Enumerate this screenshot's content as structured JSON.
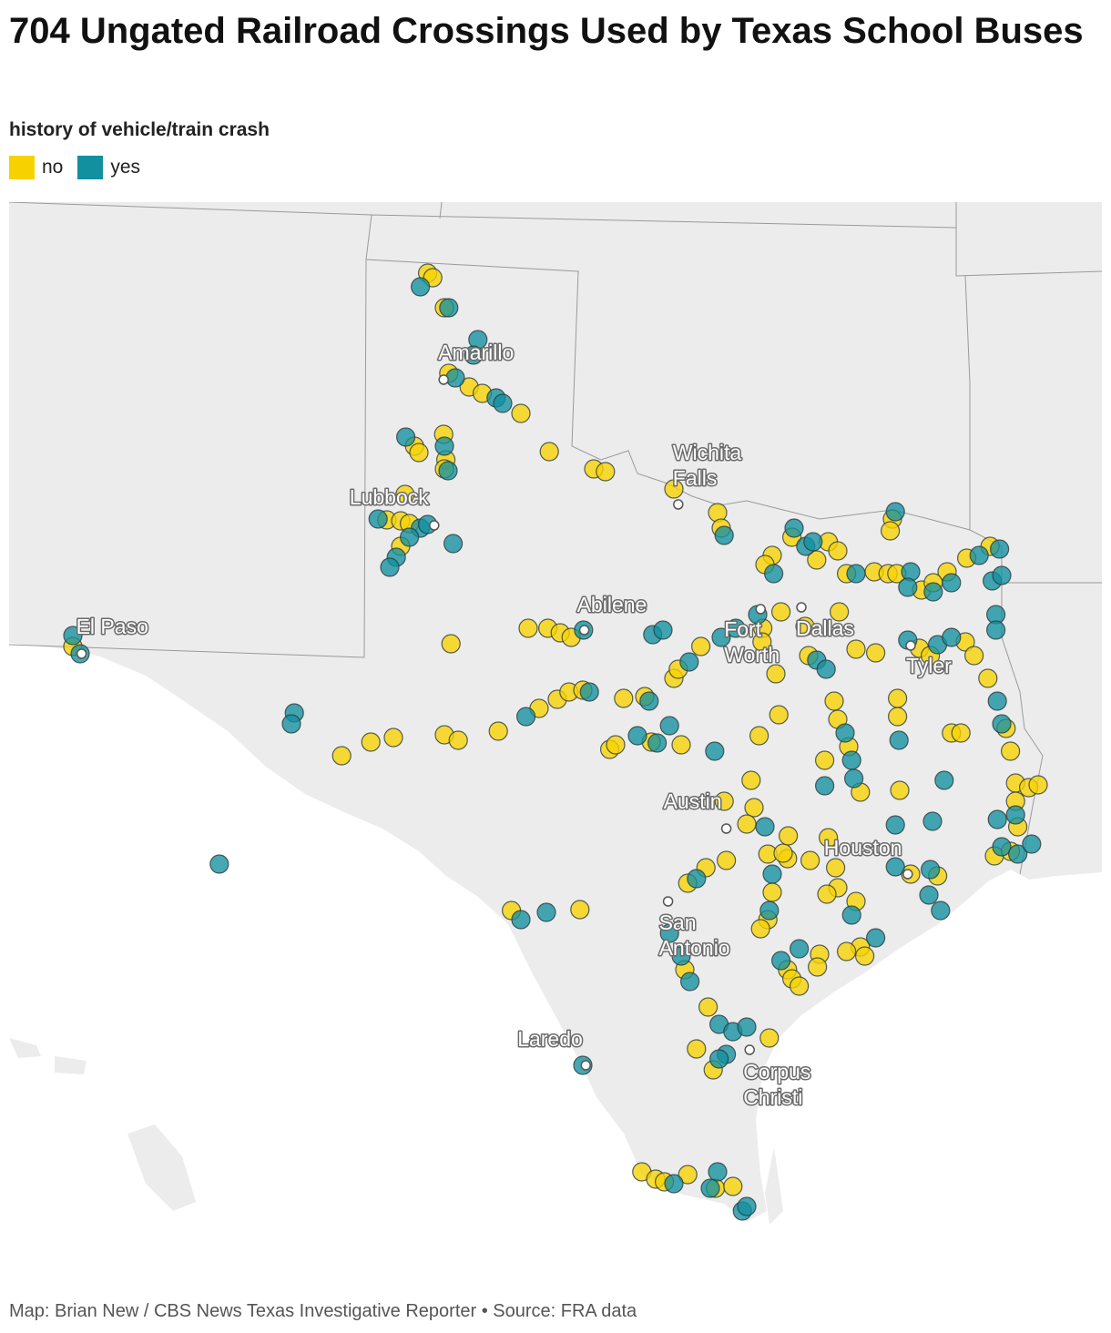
{
  "chart_data": {
    "type": "map",
    "title": "704 Ungated Railroad Crossings Used by Texas School Buses",
    "legend_title": "history of vehicle/train crash",
    "source": "Map: Brian New / CBS News Texas Investigative Reporter • Source: FRA data",
    "series": [
      {
        "name": "no",
        "color": "#f7d200",
        "x": [
          -101.73,
          -101.66,
          -101.5,
          -101.44,
          -101.16,
          -100.98,
          -100.45,
          -100.06,
          -99.45,
          -99.29,
          -101.91,
          -101.85,
          -101.51,
          -101.48,
          -101.5,
          -102.29,
          -102.1,
          -101.98,
          -102.04,
          -102.1,
          -106.6,
          -102.91,
          -102.51,
          -102.2,
          -101.5,
          -101.31,
          -100.76,
          -100.2,
          -99.95,
          -99.79,
          -99.6,
          -100.35,
          -100.08,
          -99.91,
          -99.76,
          -101.41,
          -99.04,
          -98.75,
          -99.23,
          -99.15,
          -98.66,
          -98.25,
          -98.35,
          -98.29,
          -97.98,
          -97.13,
          -97.14,
          -96.95,
          -96.91,
          -97.18,
          -97.29,
          -98.35,
          -97.75,
          -97.7,
          -97.0,
          -97.1,
          -96.88,
          -96.73,
          -96.39,
          -96.23,
          -96.1,
          -95.98,
          -95.6,
          -95.41,
          -95.29,
          -94.95,
          -94.6,
          -94.79,
          -95.35,
          -95.38,
          -94.33,
          -94.01,
          -96.08,
          -96.55,
          -95.85,
          -95.58,
          -96.5,
          -94.98,
          -94.83,
          -94.35,
          -94.23,
          -94.04,
          -93.79,
          -93.73,
          -95.28,
          -95.28,
          -94.54,
          -94.41,
          -96.15,
          -96.1,
          -95.95,
          -95.79,
          -96.28,
          -95.25,
          -93.66,
          -93.48,
          -93.35,
          -93.66,
          -93.63,
          -93.95,
          -93.73,
          -95.1,
          -94.73,
          -96.13,
          -96.1,
          -96.25,
          -95.85,
          -95.79,
          -95.98,
          -95.73,
          -96.35,
          -96.79,
          -96.73,
          -96.63,
          -96.38,
          -96.23,
          -96.48,
          -96.79,
          -97.06,
          -96.85,
          -97.0,
          -97.06,
          -97.16,
          -97.66,
          -97.25,
          -97.35,
          -96.78,
          -97.63,
          -97.91,
          -98.16,
          -98.2,
          -100.58,
          -99.64,
          -97.88,
          -97.04,
          -98.04,
          -97.81,
          -98.79,
          -98.6,
          -98.48,
          -98.16,
          -97.78,
          -97.54
        ],
        "y": [
          36.39,
          36.34,
          36.01,
          35.29,
          35.14,
          35.07,
          34.85,
          34.43,
          34.24,
          34.21,
          34.49,
          34.42,
          34.62,
          34.34,
          34.24,
          33.68,
          33.67,
          33.64,
          33.96,
          33.39,
          32.29,
          31.09,
          31.24,
          31.29,
          31.32,
          31.26,
          31.36,
          31.61,
          31.71,
          31.79,
          31.81,
          32.49,
          32.49,
          32.44,
          32.39,
          32.32,
          31.72,
          31.74,
          31.16,
          31.21,
          31.24,
          31.21,
          31.94,
          32.04,
          32.29,
          32.49,
          32.34,
          31.99,
          31.54,
          31.31,
          30.82,
          34.02,
          33.76,
          33.59,
          33.29,
          33.19,
          32.67,
          33.49,
          33.24,
          33.44,
          33.34,
          33.09,
          33.11,
          33.09,
          33.09,
          32.91,
          33.11,
          32.99,
          33.69,
          33.56,
          33.26,
          33.39,
          32.67,
          32.51,
          32.26,
          32.22,
          32.19,
          32.27,
          32.19,
          32.34,
          32.19,
          31.94,
          31.39,
          31.14,
          31.72,
          31.52,
          31.34,
          31.34,
          31.69,
          31.49,
          31.19,
          30.69,
          31.04,
          30.71,
          30.79,
          30.74,
          30.77,
          30.59,
          30.31,
          29.99,
          30.04,
          29.79,
          29.77,
          29.86,
          29.64,
          29.57,
          29.49,
          28.99,
          28.94,
          28.89,
          28.91,
          28.74,
          28.64,
          28.56,
          28.77,
          30.19,
          29.94,
          29.96,
          30.01,
          30.02,
          29.59,
          29.29,
          29.19,
          30.59,
          30.52,
          30.34,
          30.21,
          29.94,
          29.86,
          29.69,
          28.74,
          29.39,
          29.4,
          28.33,
          27.99,
          27.87,
          27.64,
          26.52,
          26.44,
          26.41,
          26.49,
          26.34,
          26.36
        ]
      },
      {
        "name": "yes",
        "color": "#12909f",
        "x": [
          -101.83,
          -101.44,
          -101.04,
          -101.1,
          -101.35,
          -100.79,
          -100.7,
          -102.03,
          -101.5,
          -101.45,
          -102.41,
          -101.83,
          -101.73,
          -101.98,
          -102.16,
          -102.25,
          -101.38,
          -106.6,
          -106.5,
          -103.56,
          -103.6,
          -100.38,
          -99.51,
          -99.59,
          -98.69,
          -98.85,
          -98.58,
          -98.41,
          -97.79,
          -98.64,
          -98.5,
          -98.14,
          -97.7,
          -97.5,
          -97.2,
          -97.66,
          -96.98,
          -96.7,
          -96.54,
          -96.44,
          -95.85,
          -95.1,
          -95.14,
          -94.79,
          -94.54,
          -95.31,
          -94.16,
          -93.88,
          -93.98,
          -93.85,
          -96.39,
          -96.26,
          -95.14,
          -94.73,
          -94.54,
          -93.91,
          -93.85,
          -95.26,
          -94.64,
          -93.93,
          -93.93,
          -96.0,
          -95.91,
          -95.88,
          -96.28,
          -93.66,
          -93.91,
          -93.85,
          -93.63,
          -93.44,
          -94.8,
          -95.31,
          -95.31,
          -94.83,
          -94.85,
          -94.69,
          -95.91,
          -95.58,
          -96.63,
          -96.88,
          -97.0,
          -97.04,
          -97.1,
          -98.04,
          -98.41,
          -98.25,
          -98.13,
          -100.45,
          -100.1,
          -104.59,
          -97.73,
          -97.54,
          -97.35,
          -97.63,
          -97.73,
          -99.6,
          -98.35,
          -97.75,
          -97.85,
          -97.41,
          -97.35
        ],
        "y": [
          36.24,
          36.01,
          35.66,
          35.49,
          35.24,
          35.02,
          34.96,
          34.59,
          34.49,
          34.22,
          33.69,
          33.59,
          33.63,
          33.49,
          33.27,
          33.16,
          33.42,
          32.41,
          32.21,
          31.56,
          31.44,
          31.52,
          31.79,
          32.47,
          31.69,
          31.31,
          31.23,
          31.42,
          31.14,
          32.42,
          32.47,
          32.12,
          32.39,
          32.49,
          32.64,
          33.51,
          33.09,
          33.59,
          33.39,
          33.44,
          33.09,
          33.11,
          32.94,
          32.89,
          32.99,
          33.77,
          33.29,
          33.36,
          33.01,
          33.07,
          32.14,
          32.04,
          32.36,
          32.31,
          32.39,
          31.69,
          31.44,
          31.26,
          30.82,
          32.64,
          32.47,
          31.34,
          31.04,
          30.84,
          30.76,
          30.44,
          30.39,
          30.09,
          30.01,
          30.12,
          30.37,
          30.33,
          29.87,
          29.84,
          29.56,
          29.39,
          29.34,
          29.09,
          28.97,
          28.84,
          29.79,
          29.39,
          30.31,
          29.74,
          29.14,
          28.89,
          28.61,
          29.29,
          29.37,
          29.9,
          28.14,
          28.06,
          28.11,
          27.81,
          27.76,
          27.69,
          26.39,
          26.52,
          26.34,
          26.09,
          26.14
        ]
      }
    ],
    "cities": [
      {
        "label": [
          "Amarillo"
        ],
        "lon": -101.51,
        "lat": 35.22
      },
      {
        "label": [
          "Wichita",
          "Falls"
        ],
        "lon": -98.29,
        "lat": 33.85
      },
      {
        "label": [
          "Lubbock"
        ],
        "lon": -101.64,
        "lat": 33.62
      },
      {
        "label": [
          "El Paso"
        ],
        "lon": -106.48,
        "lat": 32.21
      },
      {
        "label": [
          "Abilene"
        ],
        "lon": -99.58,
        "lat": 32.47
      },
      {
        "label": [
          "Fort",
          "Worth"
        ],
        "lon": -97.16,
        "lat": 32.7
      },
      {
        "label": [
          "Dallas"
        ],
        "lon": -96.6,
        "lat": 32.72
      },
      {
        "label": [
          "Tyler"
        ],
        "lon": -95.1,
        "lat": 32.3
      },
      {
        "label": [
          "Austin"
        ],
        "lon": -97.63,
        "lat": 30.29
      },
      {
        "label": [
          "Houston"
        ],
        "lon": -95.14,
        "lat": 29.79
      },
      {
        "label": [
          "San",
          "Antonio"
        ],
        "lon": -98.43,
        "lat": 29.49
      },
      {
        "label": [
          "Laredo"
        ],
        "lon": -99.56,
        "lat": 27.69
      },
      {
        "label": [
          "Corpus",
          "Christi"
        ],
        "lon": -97.31,
        "lat": 27.86
      }
    ]
  }
}
